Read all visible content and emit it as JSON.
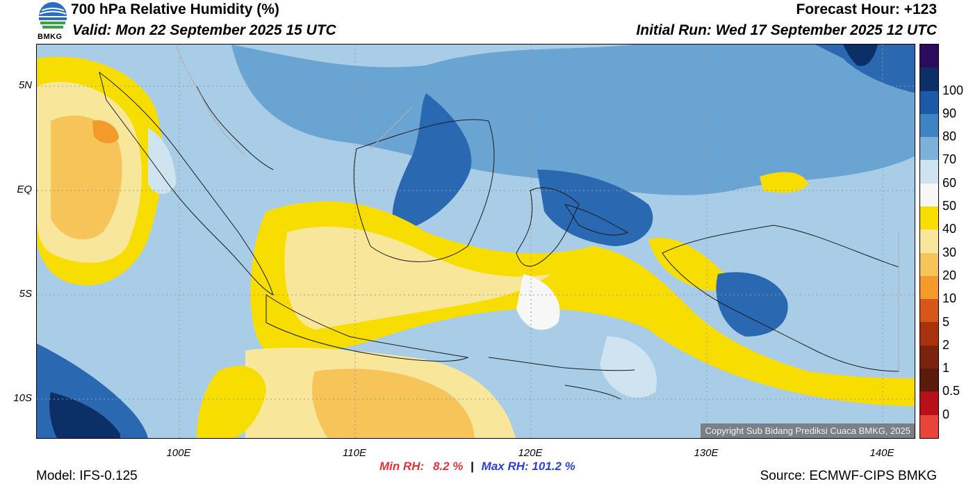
{
  "header": {
    "title": "700 hPa Relative Humidity (%)",
    "valid": "Valid: Mon 22 September 2025 15 UTC",
    "forecast_hour": "Forecast Hour: +123",
    "initial_run": "Initial Run: Wed 17 September 2025 12 UTC"
  },
  "logo": {
    "text": "BMKG"
  },
  "map": {
    "lat_labels": [
      "5N",
      "EQ",
      "5S",
      "10S"
    ],
    "lon_labels": [
      "100E",
      "110E",
      "120E",
      "130E",
      "140E"
    ],
    "copyright": "Copyright Sub Bidang Prediksi Cuaca BMKG, 2025"
  },
  "colorbar": {
    "labels": [
      "100",
      "90",
      "80",
      "70",
      "60",
      "50",
      "40",
      "30",
      "20",
      "10",
      "5",
      "2",
      "1",
      "0.5",
      "0"
    ],
    "colors": [
      "#2c0b5c",
      "#0d2f68",
      "#1c5aa8",
      "#3d84c3",
      "#7db1d9",
      "#cfe3f0",
      "#f7f7f7",
      "#f7de00",
      "#f8e79b",
      "#f7c45a",
      "#f39a2b",
      "#d9561b",
      "#a8320c",
      "#7a2410",
      "#5a1a0c",
      "#b8101a",
      "#e8443a"
    ]
  },
  "stats": {
    "min_label": "Min RH:",
    "min_value": "8.2 %",
    "max_label": "Max RH:",
    "max_value": "101.2 %"
  },
  "footer": {
    "model": "Model: IFS-0.125",
    "source": "Source: ECMWF-CIPS BMKG"
  }
}
